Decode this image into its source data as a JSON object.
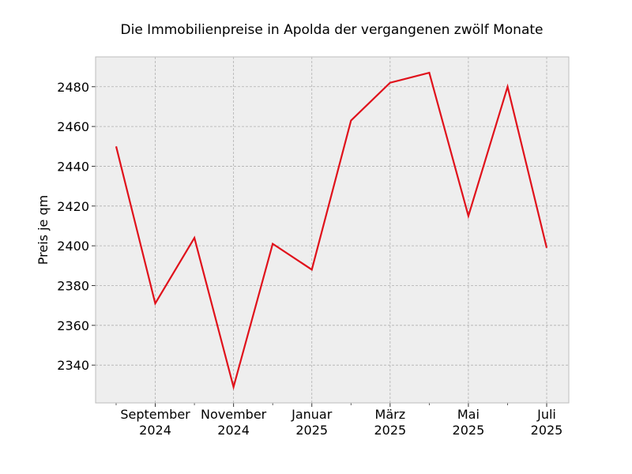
{
  "chart_data": {
    "type": "line",
    "title": "Die Immobilienpreise in Apolda der vergangenen zwölf Monate",
    "xlabel": "",
    "ylabel": "Preis je qm",
    "x": [
      "2024-08",
      "2024-09",
      "2024-10",
      "2024-11",
      "2024-12",
      "2025-01",
      "2025-02",
      "2025-03",
      "2025-04",
      "2025-05",
      "2025-06",
      "2025-07"
    ],
    "series": [
      {
        "values": [
          2450,
          2371,
          2404,
          2329,
          2401,
          2388,
          2463,
          2482,
          2487,
          2415,
          2480,
          2399
        ],
        "color": "#e0111b"
      }
    ],
    "xticks": [
      {
        "x": "2024-09",
        "line1": "September",
        "line2": "2024"
      },
      {
        "x": "2024-11",
        "line1": "November",
        "line2": "2024"
      },
      {
        "x": "2025-01",
        "line1": "Januar",
        "line2": "2025"
      },
      {
        "x": "2025-03",
        "line1": "März",
        "line2": "2025"
      },
      {
        "x": "2025-05",
        "line1": "Mai",
        "line2": "2025"
      },
      {
        "x": "2025-07",
        "line1": "Juli",
        "line2": "2025"
      }
    ],
    "yticks": [
      2340,
      2360,
      2380,
      2400,
      2420,
      2440,
      2460,
      2480
    ],
    "ylim": [
      2321,
      2495
    ],
    "grid": true,
    "background": "#eeeeee",
    "grid_color": "#b0b0b0",
    "axes_edge_color": "#bcbcbc"
  }
}
